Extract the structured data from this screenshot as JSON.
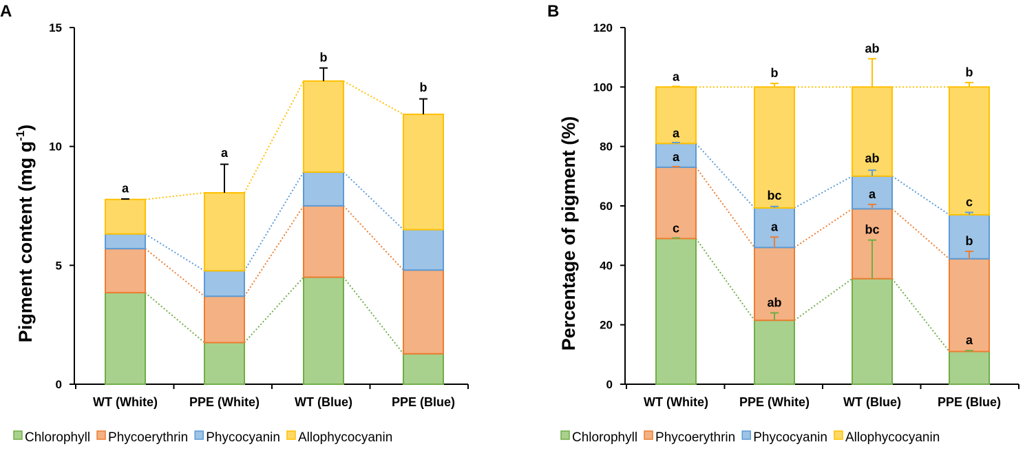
{
  "colors": {
    "Chlorophyll": {
      "fill": "#a9d18e",
      "stroke": "#70ad47"
    },
    "Phycoerythrin": {
      "fill": "#f4b183",
      "stroke": "#ed7d31"
    },
    "Phycocyanin": {
      "fill": "#9dc3e6",
      "stroke": "#5b9bd5"
    },
    "Allophycocyanin": {
      "fill": "#ffd966",
      "stroke": "#ffc000"
    }
  },
  "legend": [
    "Chlorophyll",
    "Phycoerythrin",
    "Phycocyanin",
    "Allophycocyanin"
  ],
  "chart_data": [
    {
      "panel": "A",
      "type": "bar",
      "stacked": true,
      "title": "",
      "xlabel": "",
      "ylabel": "Pigment content (mg g",
      "ylabel_superscript": "-1",
      "ylabel_close": ")",
      "ylim": [
        0,
        15
      ],
      "yticks": [
        "0",
        "5",
        "10",
        "15"
      ],
      "categories": [
        "WT (White)",
        "PPE (White)",
        "WT (Blue)",
        "PPE (Blue)"
      ],
      "series": [
        {
          "name": "Chlorophyll",
          "values": [
            3.85,
            1.75,
            4.5,
            1.28
          ]
        },
        {
          "name": "Phycoerythrin",
          "values": [
            1.85,
            1.95,
            3.0,
            3.52
          ]
        },
        {
          "name": "Phycocyanin",
          "values": [
            0.62,
            1.07,
            1.42,
            1.7
          ]
        },
        {
          "name": "Allophycocyanin",
          "values": [
            1.45,
            3.28,
            3.83,
            4.85
          ]
        }
      ],
      "error_bars": [
        {
          "series": "Allophycocyanin",
          "values": [
            0.02,
            1.2,
            0.55,
            0.65
          ],
          "color": "#000000"
        }
      ],
      "annotations": [
        {
          "category": "WT (White)",
          "level": 7.8,
          "text": "a"
        },
        {
          "category": "PPE (White)",
          "level": 9.3,
          "text": "a"
        },
        {
          "category": "WT (Blue)",
          "level": 13.3,
          "text": "b"
        },
        {
          "category": "PPE (Blue)",
          "level": 12.05,
          "text": "b"
        }
      ]
    },
    {
      "panel": "B",
      "type": "bar",
      "stacked": true,
      "title": "",
      "xlabel": "",
      "ylabel": "Percentage of pigment (%)",
      "ylim": [
        0,
        120
      ],
      "yticks": [
        "0",
        "20",
        "40",
        "60",
        "80",
        "100",
        "120"
      ],
      "categories": [
        "WT (White)",
        "PPE (White)",
        "WT (Blue)",
        "PPE (Blue)"
      ],
      "series": [
        {
          "name": "Chlorophyll",
          "values": [
            49,
            21.5,
            35.5,
            11
          ]
        },
        {
          "name": "Phycoerythrin",
          "values": [
            24,
            24.5,
            23.5,
            31.2
          ]
        },
        {
          "name": "Phycocyanin",
          "values": [
            8,
            13.3,
            11,
            14.8
          ]
        },
        {
          "name": "Allophycocyanin",
          "values": [
            19,
            40.7,
            30,
            43
          ]
        }
      ],
      "error_bars": [
        {
          "series": "Chlorophyll",
          "values": [
            0.2,
            2.5,
            13,
            0.3
          ],
          "color": "#70ad47"
        },
        {
          "series": "Phycoerythrin",
          "values": [
            0.2,
            3.5,
            1.5,
            2.5
          ],
          "color": "#ed7d31"
        },
        {
          "series": "Phycocyanin",
          "values": [
            0.3,
            0.5,
            2.0,
            0.8
          ],
          "color": "#5b9bd5"
        },
        {
          "series": "Allophycocyanin",
          "values": [
            0.2,
            1.2,
            9.5,
            1.5
          ],
          "color": "#ffc000"
        }
      ],
      "annotations": [
        {
          "category": "WT (White)",
          "level": 49,
          "text": "c",
          "inside": true
        },
        {
          "category": "WT (White)",
          "level": 73,
          "text": "a",
          "inside": true
        },
        {
          "category": "WT (White)",
          "level": 81,
          "text": "a",
          "inside": true
        },
        {
          "category": "WT (White)",
          "level": 100,
          "text": "a"
        },
        {
          "category": "PPE (White)",
          "level": 24,
          "text": "ab"
        },
        {
          "category": "PPE (White)",
          "level": 49.5,
          "text": "a"
        },
        {
          "category": "PPE (White)",
          "level": 60,
          "text": "bc"
        },
        {
          "category": "PPE (White)",
          "level": 101.2,
          "text": "b"
        },
        {
          "category": "WT (Blue)",
          "level": 48.5,
          "text": "bc"
        },
        {
          "category": "WT (Blue)",
          "level": 60.5,
          "text": "a"
        },
        {
          "category": "WT (Blue)",
          "level": 72.5,
          "text": "ab"
        },
        {
          "category": "WT (Blue)",
          "level": 109.5,
          "text": "ab"
        },
        {
          "category": "PPE (Blue)",
          "level": 11.3,
          "text": "a"
        },
        {
          "category": "PPE (Blue)",
          "level": 44.7,
          "text": "b"
        },
        {
          "category": "PPE (Blue)",
          "level": 57.8,
          "text": "c"
        },
        {
          "category": "PPE (Blue)",
          "level": 101.5,
          "text": "b"
        }
      ]
    }
  ]
}
